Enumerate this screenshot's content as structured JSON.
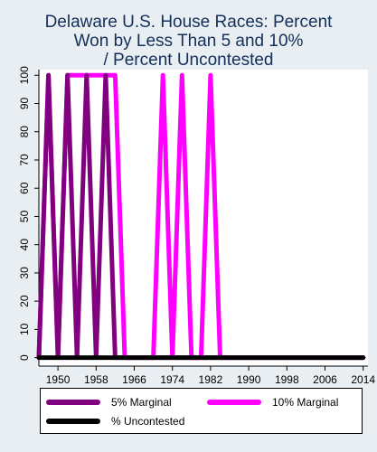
{
  "chart_data": {
    "type": "line",
    "title": "Delaware U.S. House Races: Percent Won by Less Than 5 and 10% / Percent Uncontested",
    "title_lines": [
      "Delaware U.S. House Races: Percent",
      "Won by Less Than 5 and 10%",
      "/ Percent Uncontested"
    ],
    "xlabel": "",
    "ylabel": "",
    "xlim": [
      1946,
      2015
    ],
    "ylim": [
      -3,
      102
    ],
    "x_ticks": [
      1950,
      1958,
      1966,
      1974,
      1982,
      1990,
      1998,
      2006,
      2014
    ],
    "y_ticks": [
      0,
      10,
      20,
      30,
      40,
      50,
      60,
      70,
      80,
      90,
      100
    ],
    "grid": false,
    "legend_position": "bottom",
    "series": [
      {
        "name": "10% Marginal",
        "color": "#ff00ff",
        "x": [
          1946,
          1948,
          1950,
          1952,
          1954,
          1956,
          1958,
          1960,
          1962,
          1964,
          1966,
          1968,
          1970,
          1972,
          1974,
          1976,
          1978,
          1980,
          1982,
          1984,
          1986,
          1988,
          1990,
          1992,
          1994,
          1996,
          1998,
          2000,
          2002,
          2004,
          2006,
          2008,
          2010,
          2012,
          2014
        ],
        "values": [
          0,
          100,
          0,
          100,
          100,
          100,
          100,
          100,
          100,
          0,
          0,
          0,
          0,
          100,
          0,
          100,
          0,
          0,
          100,
          0,
          0,
          0,
          0,
          0,
          0,
          0,
          0,
          0,
          0,
          0,
          0,
          0,
          0,
          0,
          0
        ]
      },
      {
        "name": "5% Marginal",
        "color": "#80007f",
        "x": [
          1946,
          1948,
          1950,
          1952,
          1954,
          1956,
          1958,
          1960,
          1962,
          1964,
          1966,
          1968,
          1970,
          1972,
          1974,
          1976,
          1978,
          1980,
          1982,
          1984,
          1986,
          1988,
          1990,
          1992,
          1994,
          1996,
          1998,
          2000,
          2002,
          2004,
          2006,
          2008,
          2010,
          2012,
          2014
        ],
        "values": [
          0,
          100,
          0,
          100,
          0,
          100,
          0,
          100,
          0,
          0,
          0,
          0,
          0,
          0,
          0,
          0,
          0,
          0,
          0,
          0,
          0,
          0,
          0,
          0,
          0,
          0,
          0,
          0,
          0,
          0,
          0,
          0,
          0,
          0,
          0
        ]
      },
      {
        "name": "% Uncontested",
        "color": "#000000",
        "x": [
          1946,
          2014
        ],
        "values": [
          0,
          0
        ]
      }
    ]
  },
  "legend": {
    "items": [
      {
        "label": "5% Marginal",
        "color": "#80007f"
      },
      {
        "label": "10% Marginal",
        "color": "#ff00ff"
      },
      {
        "label": "% Uncontested",
        "color": "#000000"
      }
    ]
  }
}
